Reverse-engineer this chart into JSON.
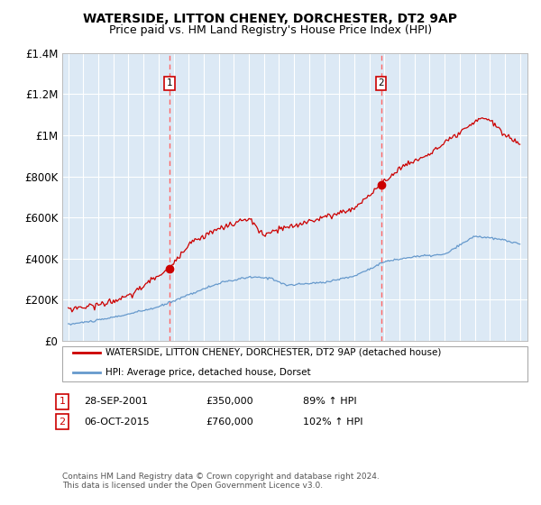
{
  "title": "WATERSIDE, LITTON CHENEY, DORCHESTER, DT2 9AP",
  "subtitle": "Price paid vs. HM Land Registry's House Price Index (HPI)",
  "title_fontsize": 10,
  "subtitle_fontsize": 9,
  "background_color": "#ffffff",
  "plot_bg_color": "#dce9f5",
  "grid_color": "#ffffff",
  "red_line_color": "#cc0000",
  "blue_line_color": "#6699cc",
  "dashed_line_color": "#ff6666",
  "ylim": [
    0,
    1400000
  ],
  "yticks": [
    0,
    200000,
    400000,
    600000,
    800000,
    1000000,
    1200000,
    1400000
  ],
  "ytick_labels": [
    "£0",
    "£200K",
    "£400K",
    "£600K",
    "£800K",
    "£1M",
    "£1.2M",
    "£1.4M"
  ],
  "x_start_year": 1995,
  "x_end_year": 2025,
  "legend_red": "WATERSIDE, LITTON CHENEY, DORCHESTER, DT2 9AP (detached house)",
  "legend_blue": "HPI: Average price, detached house, Dorset",
  "sale1_label": "1",
  "sale1_date": "28-SEP-2001",
  "sale1_price": "£350,000",
  "sale1_hpi": "89% ↑ HPI",
  "sale1_year": 2001.75,
  "sale1_value": 350000,
  "sale2_label": "2",
  "sale2_date": "06-OCT-2015",
  "sale2_price": "£760,000",
  "sale2_hpi": "102% ↑ HPI",
  "sale2_year": 2015.77,
  "sale2_value": 760000,
  "footer": "Contains HM Land Registry data © Crown copyright and database right 2024.\nThis data is licensed under the Open Government Licence v3.0."
}
